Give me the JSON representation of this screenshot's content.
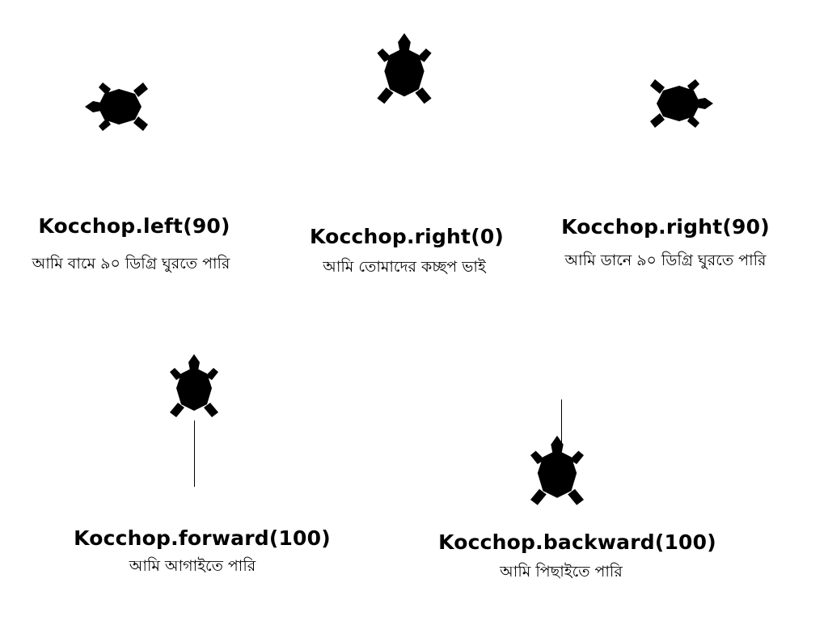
{
  "commands": [
    {
      "code": "Kocchop.left(90)",
      "caption": "আমি বামে ৯০ ডিগ্রি ঘুরতে পারি"
    },
    {
      "code": "Kocchop.right(0)",
      "caption": "আমি তোমাদের কচ্ছপ ভাই"
    },
    {
      "code": "Kocchop.right(90)",
      "caption": "আমি ডানে ৯০ ডিগ্রি ঘুরতে পারি"
    },
    {
      "code": "Kocchop.forward(100)",
      "caption": "আমি আগাইতে পারি"
    },
    {
      "code": "Kocchop.backward(100)",
      "caption": "আমি পিছাইতে পারি"
    }
  ],
  "turtles": [
    {
      "heading": "left",
      "trail": "none"
    },
    {
      "heading": "up",
      "trail": "none"
    },
    {
      "heading": "right",
      "trail": "none"
    },
    {
      "heading": "up",
      "trail": "behind"
    },
    {
      "heading": "up",
      "trail": "ahead"
    }
  ],
  "colors": {
    "turtle": "#000000",
    "background": "#ffffff"
  },
  "icons": [
    "turtle-icon"
  ]
}
